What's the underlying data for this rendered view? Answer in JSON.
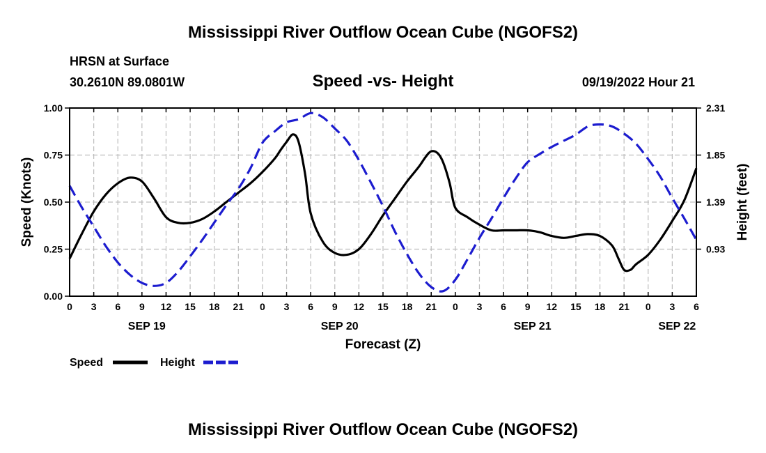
{
  "chart_data": {
    "type": "line",
    "title": "Mississippi River Outflow Ocean Cube (NGOFS2)",
    "bottom_title": "Mississippi River Outflow Ocean Cube (NGOFS2)",
    "station": "HRSN at Surface",
    "location": "30.2610N  89.0801W",
    "subtitle": "Speed -vs- Height",
    "datetime": "09/19/2022 Hour 21",
    "xlabel": "Forecast (Z)",
    "ylabel_left": "Speed (Knots)",
    "ylabel_right": "Height (feet)",
    "x_range_hours": [
      0,
      78
    ],
    "ylim_left": [
      0,
      1
    ],
    "ylim_right": [
      0.47,
      2.31
    ],
    "x_ticks": [
      {
        "h": 0,
        "label": "0"
      },
      {
        "h": 3,
        "label": "3"
      },
      {
        "h": 6,
        "label": "6"
      },
      {
        "h": 9,
        "label": "9"
      },
      {
        "h": 12,
        "label": "12"
      },
      {
        "h": 15,
        "label": "15"
      },
      {
        "h": 18,
        "label": "18"
      },
      {
        "h": 21,
        "label": "21"
      },
      {
        "h": 24,
        "label": "0"
      },
      {
        "h": 27,
        "label": "3"
      },
      {
        "h": 30,
        "label": "6"
      },
      {
        "h": 33,
        "label": "9"
      },
      {
        "h": 36,
        "label": "12"
      },
      {
        "h": 39,
        "label": "15"
      },
      {
        "h": 42,
        "label": "18"
      },
      {
        "h": 45,
        "label": "21"
      },
      {
        "h": 48,
        "label": "0"
      },
      {
        "h": 51,
        "label": "3"
      },
      {
        "h": 54,
        "label": "6"
      },
      {
        "h": 57,
        "label": "9"
      },
      {
        "h": 60,
        "label": "12"
      },
      {
        "h": 63,
        "label": "15"
      },
      {
        "h": 66,
        "label": "18"
      },
      {
        "h": 69,
        "label": "21"
      },
      {
        "h": 72,
        "label": "0"
      },
      {
        "h": 75,
        "label": "3"
      },
      {
        "h": 78,
        "label": "6"
      }
    ],
    "date_labels": [
      {
        "h": 9.6,
        "label": "SEP 19"
      },
      {
        "h": 33.6,
        "label": "SEP 20"
      },
      {
        "h": 57.6,
        "label": "SEP 21"
      },
      {
        "h": 75.6,
        "label": "SEP 22"
      }
    ],
    "y_ticks_left": [
      {
        "v": 0.0,
        "label": "0.00"
      },
      {
        "v": 0.25,
        "label": "0.25"
      },
      {
        "v": 0.5,
        "label": "0.50"
      },
      {
        "v": 0.75,
        "label": "0.75"
      },
      {
        "v": 1.0,
        "label": "1.00"
      }
    ],
    "y_ticks_right": [
      {
        "v": 0.93,
        "label": "0.93"
      },
      {
        "v": 1.39,
        "label": "1.39"
      },
      {
        "v": 1.85,
        "label": "1.85"
      },
      {
        "v": 2.31,
        "label": "2.31"
      }
    ],
    "series": [
      {
        "name": "Speed",
        "axis": "left",
        "color": "#000000",
        "dash": "solid",
        "x": [
          0,
          1.5,
          3,
          4.5,
          6,
          7.5,
          9,
          10.5,
          12,
          13.5,
          15,
          16.5,
          18,
          19.5,
          21,
          22.5,
          24,
          25.5,
          26.3,
          27,
          27.8,
          28.5,
          29.3,
          30,
          31.5,
          33,
          34.5,
          36,
          37.5,
          39,
          40.5,
          42,
          43.5,
          44.3,
          45,
          45.8,
          46.5,
          47.3,
          48,
          49.5,
          51,
          52.5,
          54,
          55.5,
          57,
          58.5,
          60,
          61.5,
          63,
          64.5,
          66,
          67.5,
          68.3,
          69,
          69.8,
          70.5,
          72,
          73.5,
          75,
          76.5,
          78
        ],
        "values": [
          0.2,
          0.33,
          0.45,
          0.54,
          0.6,
          0.63,
          0.61,
          0.52,
          0.42,
          0.39,
          0.39,
          0.41,
          0.45,
          0.5,
          0.55,
          0.6,
          0.66,
          0.73,
          0.78,
          0.82,
          0.86,
          0.82,
          0.65,
          0.44,
          0.29,
          0.23,
          0.22,
          0.25,
          0.33,
          0.43,
          0.52,
          0.61,
          0.69,
          0.74,
          0.77,
          0.76,
          0.71,
          0.6,
          0.47,
          0.42,
          0.38,
          0.35,
          0.35,
          0.35,
          0.35,
          0.34,
          0.32,
          0.31,
          0.32,
          0.33,
          0.32,
          0.27,
          0.2,
          0.14,
          0.14,
          0.17,
          0.22,
          0.3,
          0.4,
          0.51,
          0.68
        ]
      },
      {
        "name": "Height",
        "axis": "right",
        "color": "#1c1ccf",
        "dash": "dashed",
        "x": [
          0,
          1.5,
          3,
          4.5,
          6,
          7.5,
          9,
          10.5,
          12,
          13.5,
          15,
          16.5,
          18,
          19.5,
          21,
          22.5,
          24,
          25.5,
          27,
          28.5,
          30,
          31.5,
          33,
          34.5,
          36,
          37.5,
          39,
          40.5,
          42,
          43.5,
          45,
          46.5,
          48,
          49.5,
          51,
          52.5,
          54,
          55.5,
          57,
          58.5,
          60,
          61.5,
          63,
          64.5,
          66,
          67.5,
          69,
          70.5,
          72,
          73.5,
          75,
          76.5,
          78
        ],
        "values": [
          1.55,
          1.34,
          1.15,
          0.96,
          0.8,
          0.68,
          0.6,
          0.57,
          0.6,
          0.71,
          0.86,
          1.02,
          1.19,
          1.36,
          1.52,
          1.72,
          1.97,
          2.08,
          2.17,
          2.2,
          2.26,
          2.22,
          2.11,
          1.99,
          1.8,
          1.58,
          1.35,
          1.1,
          0.88,
          0.69,
          0.56,
          0.52,
          0.63,
          0.83,
          1.04,
          1.23,
          1.43,
          1.62,
          1.78,
          1.86,
          1.93,
          1.99,
          2.05,
          2.13,
          2.15,
          2.13,
          2.06,
          1.96,
          1.81,
          1.64,
          1.43,
          1.23,
          1.02
        ]
      }
    ],
    "legend": [
      {
        "label": "Speed",
        "color": "#000000",
        "dash": "solid"
      },
      {
        "label": "Height",
        "color": "#1c1ccf",
        "dash": "dashed"
      }
    ],
    "legend_position": "bottom-left"
  }
}
